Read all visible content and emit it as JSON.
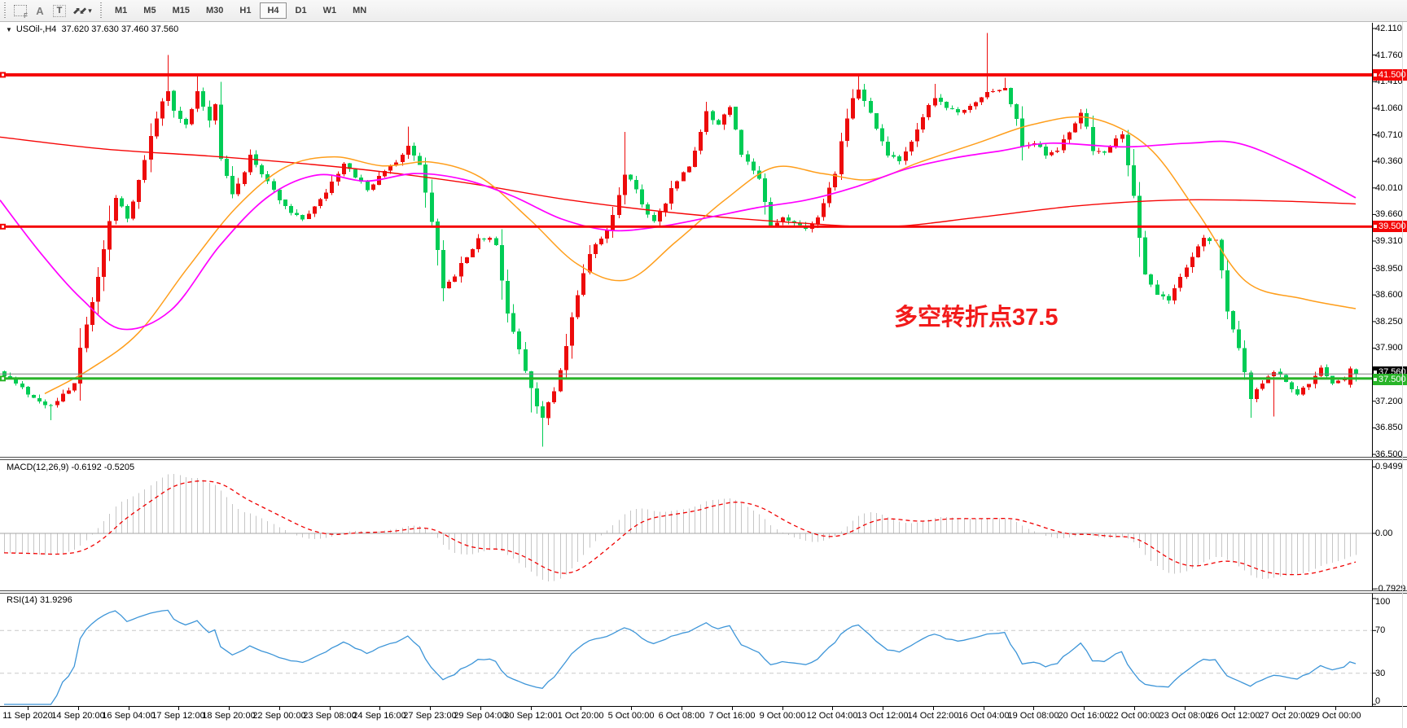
{
  "toolbar": {
    "drawing_tools": [
      {
        "name": "fibonacci-tool",
        "glyph": "F"
      },
      {
        "name": "text-label-tool",
        "glyph": "A"
      },
      {
        "name": "text-box-tool",
        "glyph": "T"
      },
      {
        "name": "arrows-tool",
        "glyph": "⬈⬋"
      }
    ],
    "dropdown_caret": "▾",
    "timeframes": [
      "M1",
      "M5",
      "M15",
      "M30",
      "H1",
      "H4",
      "D1",
      "W1",
      "MN"
    ],
    "active_timeframe": "H4"
  },
  "symbol_info": {
    "expander": "▼",
    "text": "USOil-,H4  37.620 37.630 37.460 37.560"
  },
  "annotation": {
    "text": "多空转折点37.5",
    "color": "#f21b1b"
  },
  "main_chart": {
    "price_ticks": [
      {
        "label": "42.110",
        "value": 42.11
      },
      {
        "label": "41.760",
        "value": 41.76
      },
      {
        "label": "41.410",
        "value": 41.41
      },
      {
        "label": "41.060",
        "value": 41.06
      },
      {
        "label": "40.710",
        "value": 40.71
      },
      {
        "label": "40.360",
        "value": 40.36
      },
      {
        "label": "40.010",
        "value": 40.01
      },
      {
        "label": "39.660",
        "value": 39.66
      },
      {
        "label": "39.310",
        "value": 39.31
      },
      {
        "label": "38.950",
        "value": 38.95
      },
      {
        "label": "38.600",
        "value": 38.6
      },
      {
        "label": "38.250",
        "value": 38.25
      },
      {
        "label": "37.900",
        "value": 37.9
      },
      {
        "label": "37.200",
        "value": 37.2
      },
      {
        "label": "36.850",
        "value": 36.85
      },
      {
        "label": "36.500",
        "value": 36.5
      }
    ],
    "current_price": {
      "label": "37.560",
      "value": 37.56,
      "tag_color": "#000000"
    },
    "hlines": [
      {
        "label": "41.500",
        "value": 41.5,
        "color": "#f40606",
        "thickness": 4
      },
      {
        "label": "39.500",
        "value": 39.5,
        "color": "#f40606",
        "thickness": 3
      },
      {
        "label": "37.500",
        "value": 37.5,
        "color": "#28b428",
        "thickness": 3
      }
    ]
  },
  "macd_panel": {
    "label": "MACD(12,26,9) -0.6192 -0.5205",
    "ticks": [
      {
        "label": "0.9499",
        "value": 0.9499
      },
      {
        "label": "0.00",
        "value": 0
      },
      {
        "label": "-0.7929",
        "value": -0.7929
      }
    ]
  },
  "rsi_panel": {
    "label": "RSI(14) 31.9296",
    "ticks": [
      {
        "label": "100",
        "value": 100
      },
      {
        "label": "70",
        "value": 70
      },
      {
        "label": "30",
        "value": 30
      },
      {
        "label": "0",
        "value": 0
      }
    ],
    "dashed_levels": [
      70,
      30
    ]
  },
  "time_axis": [
    "11 Sep 2020",
    "14 Sep 20:00",
    "16 Sep 04:00",
    "17 Sep 12:00",
    "18 Sep 20:00",
    "22 Sep 00:00",
    "23 Sep 08:00",
    "24 Sep 16:00",
    "27 Sep 23:00",
    "29 Sep 04:00",
    "30 Sep 12:00",
    "1 Oct 20:00",
    "5 Oct 00:00",
    "6 Oct 08:00",
    "7 Oct 16:00",
    "9 Oct 00:00",
    "12 Oct 04:00",
    "13 Oct 12:00",
    "14 Oct 22:00",
    "16 Oct 04:00",
    "19 Oct 08:00",
    "20 Oct 16:00",
    "22 Oct 00:00",
    "23 Oct 08:00",
    "26 Oct 12:00",
    "27 Oct 20:00",
    "29 Oct 00:00"
  ],
  "chart_data": {
    "type": "candlestick",
    "symbol": "USOil-",
    "timeframe": "H4",
    "last_bar_ohlc": {
      "open": 37.62,
      "high": 37.63,
      "low": 37.46,
      "close": 37.56
    },
    "price_range": [
      36.5,
      42.11
    ],
    "bars": 232,
    "colors": {
      "up": "#ed0b0b",
      "down": "#00cc55",
      "ma_red": "#f60606",
      "ma_orange": "#ff9e1b",
      "ma_magenta": "#ff00ff",
      "macd_hist": "#c6c6c6",
      "macd_signal": "#f00000",
      "macd_zero": "#a6a6a6",
      "rsi_line": "#3d95d8",
      "level_dash": "#c9c9c9",
      "bid_line": "#808080"
    },
    "price_path": [
      [
        0,
        37.55
      ],
      [
        2,
        37.45
      ],
      [
        4,
        37.3
      ],
      [
        6,
        37.2
      ],
      [
        8,
        37.12
      ],
      [
        10,
        37.3
      ],
      [
        12,
        37.42
      ],
      [
        13,
        37.9
      ],
      [
        15,
        38.5
      ],
      [
        17,
        39.2
      ],
      [
        19,
        39.9
      ],
      [
        21,
        39.6
      ],
      [
        23,
        40.1
      ],
      [
        25,
        40.7
      ],
      [
        27,
        41.15
      ],
      [
        28,
        41.3
      ],
      [
        29,
        41.0
      ],
      [
        31,
        40.85
      ],
      [
        33,
        41.3
      ],
      [
        35,
        40.9
      ],
      [
        36,
        41.1
      ],
      [
        37,
        40.4
      ],
      [
        39,
        39.95
      ],
      [
        41,
        40.2
      ],
      [
        42,
        40.45
      ],
      [
        44,
        40.2
      ],
      [
        47,
        39.85
      ],
      [
        49,
        39.7
      ],
      [
        51,
        39.6
      ],
      [
        53,
        39.75
      ],
      [
        55,
        39.95
      ],
      [
        57,
        40.2
      ],
      [
        58,
        40.35
      ],
      [
        60,
        40.15
      ],
      [
        62,
        40.0
      ],
      [
        64,
        40.15
      ],
      [
        65,
        40.25
      ],
      [
        67,
        40.35
      ],
      [
        69,
        40.55
      ],
      [
        71,
        40.3
      ],
      [
        72,
        39.95
      ],
      [
        74,
        39.2
      ],
      [
        75,
        38.7
      ],
      [
        77,
        38.85
      ],
      [
        78,
        39.0
      ],
      [
        80,
        39.2
      ],
      [
        81,
        39.35
      ],
      [
        83,
        39.35
      ],
      [
        84,
        39.25
      ],
      [
        85,
        38.8
      ],
      [
        86,
        38.35
      ],
      [
        88,
        37.9
      ],
      [
        89,
        37.6
      ],
      [
        91,
        37.15
      ],
      [
        92,
        37.0
      ],
      [
        94,
        37.35
      ],
      [
        96,
        37.9
      ],
      [
        97,
        38.3
      ],
      [
        99,
        38.9
      ],
      [
        100,
        39.15
      ],
      [
        102,
        39.35
      ],
      [
        103,
        39.45
      ],
      [
        105,
        39.9
      ],
      [
        106,
        40.2
      ],
      [
        108,
        40.0
      ],
      [
        109,
        39.8
      ],
      [
        111,
        39.55
      ],
      [
        113,
        39.8
      ],
      [
        114,
        40.0
      ],
      [
        116,
        40.2
      ],
      [
        117,
        40.3
      ],
      [
        119,
        40.75
      ],
      [
        120,
        41.0
      ],
      [
        122,
        40.85
      ],
      [
        124,
        41.1
      ],
      [
        126,
        40.45
      ],
      [
        128,
        40.25
      ],
      [
        129,
        40.15
      ],
      [
        131,
        39.5
      ],
      [
        133,
        39.6
      ],
      [
        135,
        39.55
      ],
      [
        137,
        39.45
      ],
      [
        139,
        39.6
      ],
      [
        140,
        39.8
      ],
      [
        142,
        40.2
      ],
      [
        143,
        40.6
      ],
      [
        145,
        41.2
      ],
      [
        146,
        41.3
      ],
      [
        148,
        41.0
      ],
      [
        150,
        40.6
      ],
      [
        151,
        40.45
      ],
      [
        153,
        40.35
      ],
      [
        155,
        40.6
      ],
      [
        156,
        40.8
      ],
      [
        158,
        41.1
      ],
      [
        159,
        41.2
      ],
      [
        161,
        41.05
      ],
      [
        163,
        41.0
      ],
      [
        165,
        41.1
      ],
      [
        167,
        41.2
      ],
      [
        168,
        41.25
      ],
      [
        170,
        41.3
      ],
      [
        171,
        41.35
      ],
      [
        173,
        40.9
      ],
      [
        174,
        40.55
      ],
      [
        176,
        40.6
      ],
      [
        178,
        40.45
      ],
      [
        180,
        40.5
      ],
      [
        182,
        40.75
      ],
      [
        184,
        41.0
      ],
      [
        185,
        40.8
      ],
      [
        186,
        40.5
      ],
      [
        188,
        40.45
      ],
      [
        190,
        40.65
      ],
      [
        191,
        40.7
      ],
      [
        193,
        39.9
      ],
      [
        195,
        38.85
      ],
      [
        197,
        38.6
      ],
      [
        199,
        38.55
      ],
      [
        200,
        38.7
      ],
      [
        202,
        38.95
      ],
      [
        203,
        39.1
      ],
      [
        205,
        39.35
      ],
      [
        207,
        39.3
      ],
      [
        208,
        38.9
      ],
      [
        209,
        38.4
      ],
      [
        211,
        37.9
      ],
      [
        213,
        37.25
      ],
      [
        215,
        37.45
      ],
      [
        217,
        37.6
      ],
      [
        219,
        37.45
      ],
      [
        221,
        37.3
      ],
      [
        223,
        37.45
      ],
      [
        225,
        37.65
      ],
      [
        227,
        37.45
      ],
      [
        229,
        37.5
      ],
      [
        231,
        37.56
      ]
    ],
    "spikes": [
      {
        "bar": 8,
        "low": 36.95
      },
      {
        "bar": 28,
        "high": 41.76
      },
      {
        "bar": 33,
        "high": 41.5
      },
      {
        "bar": 69,
        "high": 40.82
      },
      {
        "bar": 90,
        "low": 37.05
      },
      {
        "bar": 92,
        "low": 36.6
      },
      {
        "bar": 106,
        "high": 40.75
      },
      {
        "bar": 146,
        "high": 41.5
      },
      {
        "bar": 159,
        "high": 41.38
      },
      {
        "bar": 168,
        "high": 42.05
      },
      {
        "bar": 171,
        "high": 41.46
      },
      {
        "bar": 213,
        "low": 36.98
      },
      {
        "bar": 217,
        "low": 37.0
      }
    ],
    "overrides": [
      {
        "bar": 230,
        "o": 37.42,
        "h": 37.66,
        "l": 37.38,
        "c": 37.63
      },
      {
        "bar": 231,
        "o": 37.62,
        "h": 37.63,
        "l": 37.46,
        "c": 37.56
      }
    ],
    "ma_lines": [
      {
        "name": "ma-red",
        "color": "#f60606",
        "width": 1.4,
        "points": [
          [
            0,
            40.68
          ],
          [
            130,
            40.52
          ],
          [
            270,
            40.42
          ],
          [
            430,
            40.27
          ],
          [
            570,
            40.08
          ],
          [
            700,
            39.85
          ],
          [
            840,
            39.67
          ],
          [
            980,
            39.55
          ],
          [
            1090,
            39.5
          ],
          [
            1200,
            39.62
          ],
          [
            1320,
            39.77
          ],
          [
            1440,
            39.85
          ],
          [
            1560,
            39.84
          ],
          [
            1665,
            39.8
          ]
        ]
      },
      {
        "name": "ma-orange",
        "color": "#ff9e1b",
        "width": 1.5,
        "points": [
          [
            55,
            37.3
          ],
          [
            110,
            37.62
          ],
          [
            170,
            38.1
          ],
          [
            230,
            38.95
          ],
          [
            290,
            39.75
          ],
          [
            350,
            40.28
          ],
          [
            410,
            40.42
          ],
          [
            470,
            40.3
          ],
          [
            530,
            40.35
          ],
          [
            590,
            40.15
          ],
          [
            650,
            39.6
          ],
          [
            710,
            39.0
          ],
          [
            770,
            38.8
          ],
          [
            830,
            39.3
          ],
          [
            890,
            39.85
          ],
          [
            950,
            40.28
          ],
          [
            1010,
            40.2
          ],
          [
            1070,
            40.12
          ],
          [
            1130,
            40.35
          ],
          [
            1200,
            40.6
          ],
          [
            1270,
            40.85
          ],
          [
            1340,
            40.93
          ],
          [
            1410,
            40.55
          ],
          [
            1470,
            39.7
          ],
          [
            1530,
            38.78
          ],
          [
            1600,
            38.55
          ],
          [
            1665,
            38.42
          ]
        ]
      },
      {
        "name": "ma-magenta",
        "color": "#ff00ff",
        "width": 1.7,
        "points": [
          [
            0,
            39.85
          ],
          [
            50,
            39.15
          ],
          [
            100,
            38.55
          ],
          [
            150,
            38.15
          ],
          [
            210,
            38.4
          ],
          [
            270,
            39.25
          ],
          [
            330,
            39.9
          ],
          [
            390,
            40.18
          ],
          [
            450,
            40.1
          ],
          [
            510,
            40.2
          ],
          [
            570,
            40.12
          ],
          [
            630,
            39.9
          ],
          [
            690,
            39.6
          ],
          [
            750,
            39.45
          ],
          [
            810,
            39.5
          ],
          [
            870,
            39.62
          ],
          [
            930,
            39.75
          ],
          [
            990,
            39.85
          ],
          [
            1050,
            40.02
          ],
          [
            1110,
            40.25
          ],
          [
            1170,
            40.4
          ],
          [
            1230,
            40.5
          ],
          [
            1290,
            40.6
          ],
          [
            1380,
            40.55
          ],
          [
            1460,
            40.6
          ],
          [
            1520,
            40.6
          ],
          [
            1590,
            40.3
          ],
          [
            1665,
            39.88
          ]
        ]
      }
    ],
    "indicators": {
      "macd": {
        "fast": 12,
        "slow": 26,
        "signal": 9,
        "display_range": [
          -0.7929,
          0.9499
        ]
      },
      "rsi": {
        "period": 14,
        "display_range": [
          0,
          100
        ]
      }
    }
  }
}
